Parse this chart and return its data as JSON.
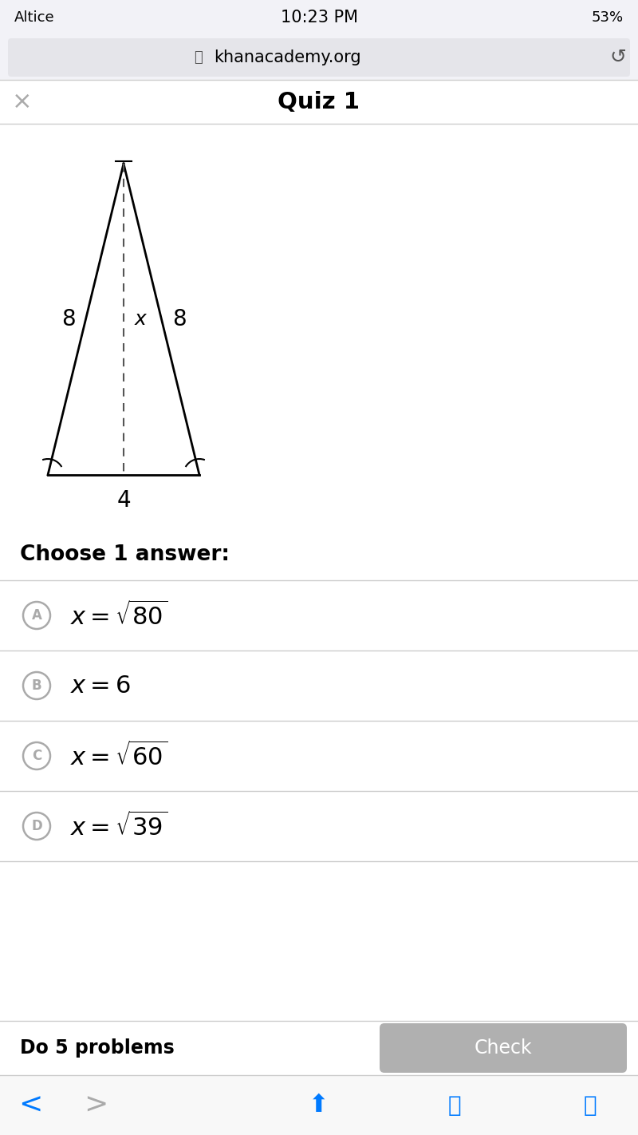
{
  "bg_color": "#ffffff",
  "status_bar_text": "10:23 PM",
  "status_bar_left": "Altice",
  "status_bar_right": "53%",
  "url_bar_text": "khanacademy.org",
  "quiz_title": "Quiz 1",
  "triangle": {
    "label_left_side": "8",
    "label_right_side": "8",
    "label_base": "4",
    "label_height": "x"
  },
  "choose_text": "Choose 1 answer:",
  "answers": [
    {
      "letter": "A",
      "math": "$x = \\sqrt{80}$",
      "partial": false
    },
    {
      "letter": "B",
      "math": "$x = 6$",
      "partial": false
    },
    {
      "letter": "C",
      "math": "$x = \\sqrt{60}$",
      "partial": false
    },
    {
      "letter": "D",
      "math": "$x = \\sqrt{39}$",
      "partial": true
    }
  ],
  "bottom_left_text": "Do 5 problems",
  "bottom_right_text": "Check",
  "line_color": "#000000",
  "dashed_line_color": "#555555",
  "circle_color": "#aaaaaa",
  "answer_font_size": 22,
  "choose_font_size": 18
}
